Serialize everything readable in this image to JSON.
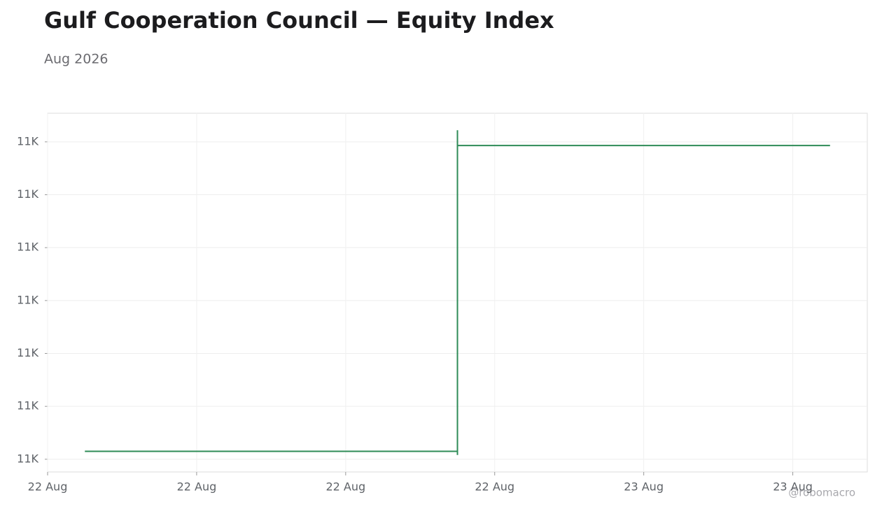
{
  "chart_data": {
    "type": "line",
    "title": "Gulf Cooperation Council — Equity Index",
    "subtitle": "Aug 2026",
    "watermark": "@robomacro",
    "series": [
      {
        "color": "#2e8b57",
        "x": [
          1.5,
          16.5,
          16.5,
          16.5,
          16.5,
          31.5
        ],
        "values": [
          11001.5,
          11001.5,
          11000.8,
          11062.2,
          11059.3,
          11059.3
        ]
      }
    ],
    "xlim": [
      0,
      33
    ],
    "xticks": [
      {
        "value": 0,
        "label": "22 Aug"
      },
      {
        "value": 6,
        "label": "22 Aug"
      },
      {
        "value": 12,
        "label": "22 Aug"
      },
      {
        "value": 18,
        "label": "22 Aug"
      },
      {
        "value": 24,
        "label": "23 Aug"
      },
      {
        "value": 30,
        "label": "23 Aug"
      }
    ],
    "ylim": [
      10997.6,
      11065.4
    ],
    "yticks": [
      {
        "value": 11000,
        "label": "11K"
      },
      {
        "value": 11010,
        "label": "11K"
      },
      {
        "value": 11020,
        "label": "11K"
      },
      {
        "value": 11030,
        "label": "11K"
      },
      {
        "value": 11040,
        "label": "11K"
      },
      {
        "value": 11050,
        "label": "11K"
      },
      {
        "value": 11060,
        "label": "11K"
      }
    ],
    "grid": true
  }
}
